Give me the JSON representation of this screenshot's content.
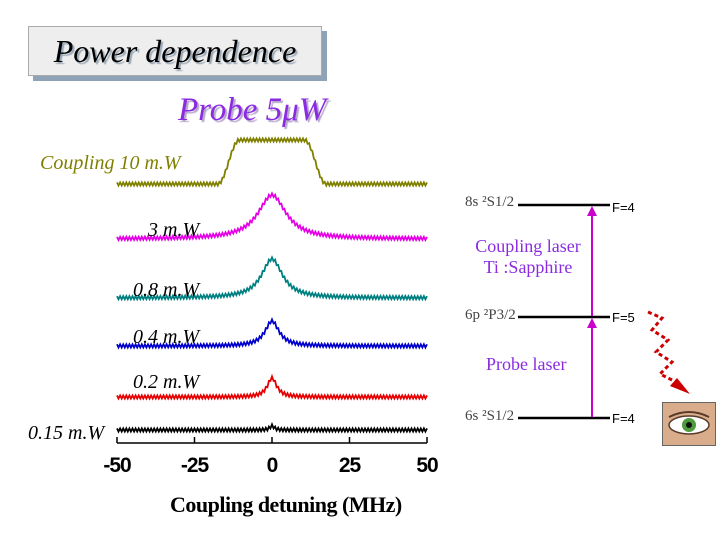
{
  "title": "Power dependence",
  "subtitle": "Probe 5μW",
  "chart_data": {
    "type": "line",
    "xlabel": "Coupling detuning (MHz)",
    "xlim": [
      -50,
      50
    ],
    "xticks": [
      "-50",
      "-25",
      "0",
      "25",
      "50"
    ],
    "series": [
      {
        "name": "Coupling 10 m.W",
        "color": "#808000",
        "peak_center": 0,
        "fwhm": 28,
        "shape": "flat-top",
        "level": 0
      },
      {
        "name": "3 m.W",
        "color": "#e600e6",
        "peak_center": 0,
        "fwhm": 12,
        "shape": "peak",
        "level": 1
      },
      {
        "name": "0.8 m.W",
        "color": "#008080",
        "peak_center": 0,
        "fwhm": 9,
        "shape": "peak",
        "level": 2
      },
      {
        "name": "0.4 m.W",
        "color": "#0000cc",
        "peak_center": 0,
        "fwhm": 6,
        "shape": "peak",
        "level": 3
      },
      {
        "name": "0.2 m.W",
        "color": "#e60000",
        "peak_center": 0,
        "fwhm": 4,
        "shape": "peak",
        "level": 4
      },
      {
        "name": "0.15 m.W",
        "color": "#000000",
        "peak_center": 0,
        "fwhm": 2,
        "shape": "peak",
        "level": 5
      }
    ]
  },
  "level_diagram": {
    "upper_level": "8s ²S1/2",
    "middle_level": "6p ²P3/2",
    "ground_level": "6s ²S1/2",
    "upper_f": "F=4",
    "middle_f": "F=5",
    "ground_f": "F=4",
    "coupling_laser_line1": "Coupling laser",
    "coupling_laser_line2": "Ti :Sapphire",
    "probe_laser": "Probe laser",
    "arrow_color": "#cc00cc",
    "decay_color": "#cc0000"
  }
}
